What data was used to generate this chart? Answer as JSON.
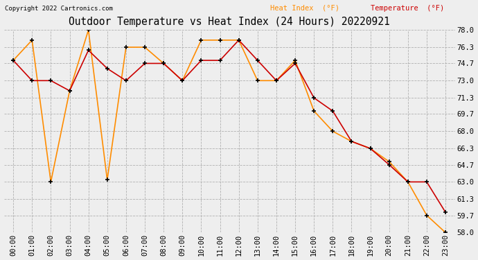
{
  "title": "Outdoor Temperature vs Heat Index (24 Hours) 20220921",
  "copyright": "Copyright 2022 Cartronics.com",
  "legend_heat": "Heat Index  (°F)",
  "legend_temp": "Temperature  (°F)",
  "hours": [
    "00:00",
    "01:00",
    "02:00",
    "03:00",
    "04:00",
    "05:00",
    "06:00",
    "07:00",
    "08:00",
    "09:00",
    "10:00",
    "11:00",
    "12:00",
    "13:00",
    "14:00",
    "15:00",
    "16:00",
    "17:00",
    "18:00",
    "19:00",
    "20:00",
    "21:00",
    "22:00",
    "23:00"
  ],
  "heat_index": [
    75.0,
    77.0,
    63.0,
    72.0,
    78.0,
    63.2,
    76.3,
    76.3,
    74.7,
    73.0,
    77.0,
    77.0,
    77.0,
    73.0,
    73.0,
    75.0,
    70.0,
    68.0,
    67.0,
    66.3,
    65.0,
    63.0,
    59.7,
    58.0
  ],
  "temperature": [
    75.0,
    73.0,
    73.0,
    72.0,
    76.0,
    74.2,
    73.0,
    74.7,
    74.7,
    73.0,
    75.0,
    75.0,
    77.0,
    75.0,
    73.0,
    74.7,
    71.3,
    70.0,
    67.0,
    66.3,
    64.7,
    63.0,
    63.0,
    60.0
  ],
  "heat_color": "#FF8C00",
  "temp_color": "#CC0000",
  "marker_color": "black",
  "ylim_min": 58.0,
  "ylim_max": 78.0,
  "yticks": [
    58.0,
    59.7,
    61.3,
    63.0,
    64.7,
    66.3,
    68.0,
    69.7,
    71.3,
    73.0,
    74.7,
    76.3,
    78.0
  ],
  "bg_color": "#eeeeee",
  "grid_color": "#aaaaaa",
  "title_fontsize": 10.5,
  "tick_fontsize": 7.5,
  "copyright_fontsize": 6.5,
  "legend_fontsize": 7.5
}
